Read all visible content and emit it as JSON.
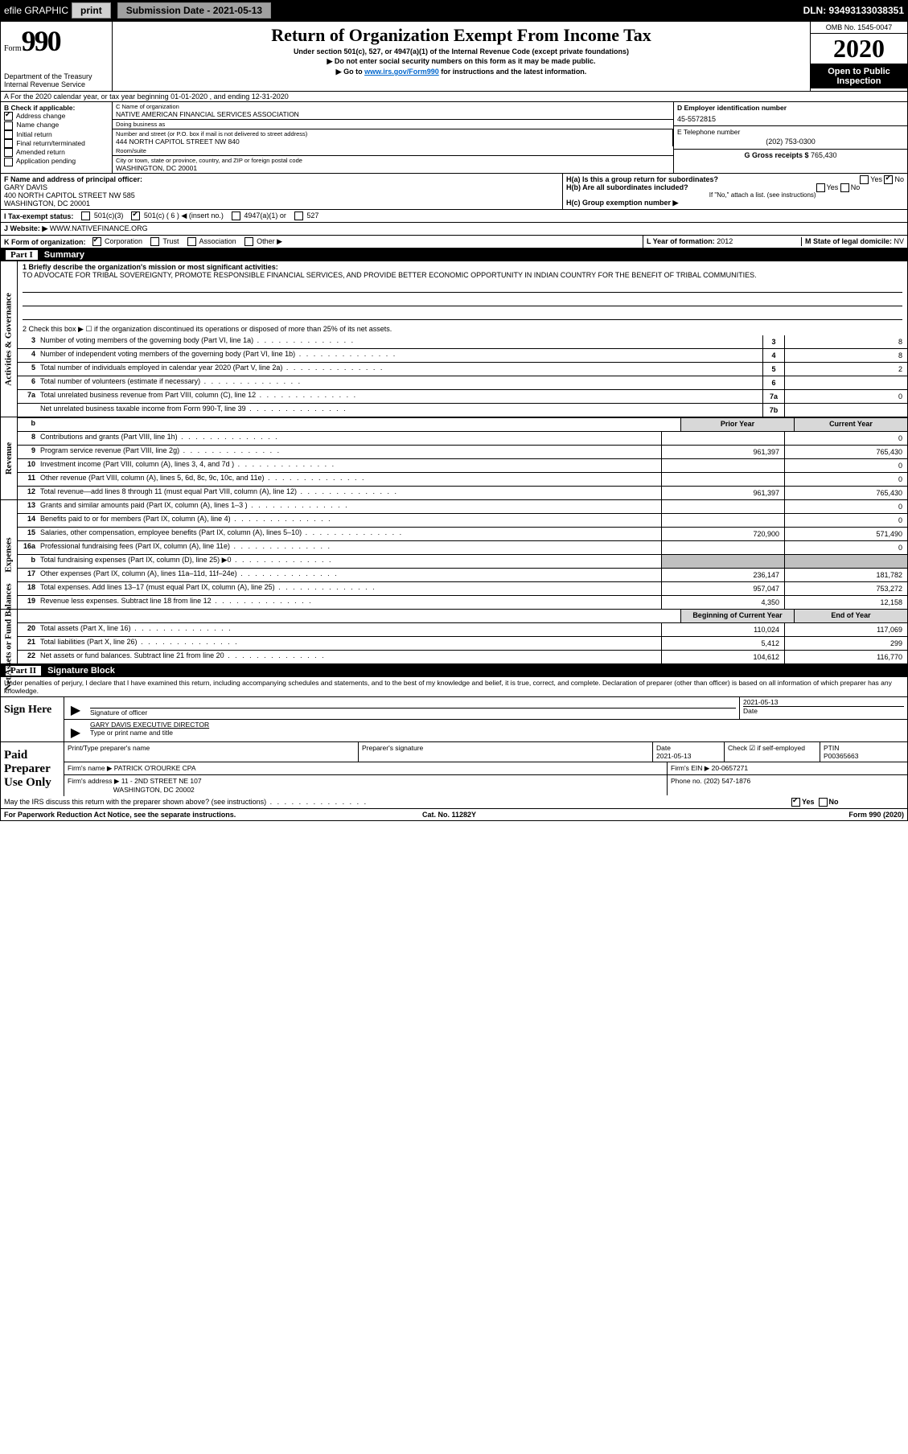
{
  "top_bar": {
    "efile": "efile GRAPHIC",
    "print": "print",
    "submission_label": "Submission Date - 2021-05-13",
    "dln": "DLN: 93493133038351"
  },
  "header": {
    "form_word": "Form",
    "form_number": "990",
    "dept": "Department of the Treasury",
    "irs": "Internal Revenue Service",
    "title": "Return of Organization Exempt From Income Tax",
    "sub1": "Under section 501(c), 527, or 4947(a)(1) of the Internal Revenue Code (except private foundations)",
    "sub2": "▶ Do not enter social security numbers on this form as it may be made public.",
    "sub3_pre": "▶ Go to ",
    "sub3_link": "www.irs.gov/Form990",
    "sub3_post": " for instructions and the latest information.",
    "omb": "OMB No. 1545-0047",
    "year": "2020",
    "open": "Open to Public Inspection"
  },
  "row_a": "A For the 2020 calendar year, or tax year beginning 01-01-2020   , and ending 12-31-2020",
  "col_b": {
    "title": "B Check if applicable:",
    "items": [
      "Address change",
      "Name change",
      "Initial return",
      "Final return/terminated",
      "Amended return",
      "Application pending"
    ],
    "checked_index": 0
  },
  "col_c": {
    "name_lbl": "C Name of organization",
    "name": "NATIVE AMERICAN FINANCIAL SERVICES ASSOCIATION",
    "dba_lbl": "Doing business as",
    "dba": "",
    "addr_lbl": "Number and street (or P.O. box if mail is not delivered to street address)",
    "room_lbl": "Room/suite",
    "addr": "444 NORTH CAPITOL STREET NW 840",
    "city_lbl": "City or town, state or province, country, and ZIP or foreign postal code",
    "city": "WASHINGTON, DC  20001"
  },
  "col_de": {
    "d_lbl": "D Employer identification number",
    "d_val": "45-5572815",
    "e_lbl": "E Telephone number",
    "e_val": "(202) 753-0300",
    "g_lbl": "G Gross receipts $ ",
    "g_val": "765,430"
  },
  "row_f": {
    "lbl": "F  Name and address of principal officer:",
    "name": "GARY DAVIS",
    "addr": "400 NORTH CAPITOL STREET NW 585\nWASHINGTON, DC  20001"
  },
  "row_h": {
    "ha": "H(a)  Is this a group return for subordinates?",
    "ha_yes": "Yes",
    "ha_no": "No",
    "hb": "H(b)  Are all subordinates included?",
    "hb_yes": "Yes",
    "hb_no": "No",
    "hb_note": "If \"No,\" attach a list. (see instructions)",
    "hc": "H(c)  Group exemption number ▶"
  },
  "row_i": {
    "lbl": "I  Tax-exempt status:",
    "o1": "501(c)(3)",
    "o2": "501(c) ( 6 ) ◀ (insert no.)",
    "o3": "4947(a)(1) or",
    "o4": "527"
  },
  "row_j": {
    "lbl": "J  Website: ▶",
    "val": "WWW.NATIVEFINANCE.ORG"
  },
  "row_k": {
    "lbl": "K Form of organization:",
    "opts": [
      "Corporation",
      "Trust",
      "Association",
      "Other ▶"
    ],
    "l_lbl": "L Year of formation: ",
    "l_val": "2012",
    "m_lbl": "M State of legal domicile: ",
    "m_val": "NV"
  },
  "part1": {
    "pn": "Part I",
    "title": "Summary"
  },
  "mission": {
    "q1": "1  Briefly describe the organization's mission or most significant activities:",
    "text": "TO ADVOCATE FOR TRIBAL SOVEREIGNTY, PROMOTE RESPONSIBLE FINANCIAL SERVICES, AND PROVIDE BETTER ECONOMIC OPPORTUNITY IN INDIAN COUNTRY FOR THE BENEFIT OF TRIBAL COMMUNITIES.",
    "q2": "2  Check this box ▶ ☐  if the organization discontinued its operations or disposed of more than 25% of its net assets."
  },
  "gov": {
    "vtab": "Activities & Governance",
    "rows": [
      {
        "n": "3",
        "d": "Number of voting members of the governing body (Part VI, line 1a)",
        "box": "3",
        "v": "8"
      },
      {
        "n": "4",
        "d": "Number of independent voting members of the governing body (Part VI, line 1b)",
        "box": "4",
        "v": "8"
      },
      {
        "n": "5",
        "d": "Total number of individuals employed in calendar year 2020 (Part V, line 2a)",
        "box": "5",
        "v": "2"
      },
      {
        "n": "6",
        "d": "Total number of volunteers (estimate if necessary)",
        "box": "6",
        "v": ""
      },
      {
        "n": "7a",
        "d": "Total unrelated business revenue from Part VIII, column (C), line 12",
        "box": "7a",
        "v": "0"
      },
      {
        "n": "",
        "d": "Net unrelated business taxable income from Form 990-T, line 39",
        "box": "7b",
        "v": ""
      }
    ]
  },
  "rev": {
    "vtab": "Revenue",
    "hdr_prior": "Prior Year",
    "hdr_curr": "Current Year",
    "rows": [
      {
        "n": "8",
        "d": "Contributions and grants (Part VIII, line 1h)",
        "p": "",
        "c": "0"
      },
      {
        "n": "9",
        "d": "Program service revenue (Part VIII, line 2g)",
        "p": "961,397",
        "c": "765,430"
      },
      {
        "n": "10",
        "d": "Investment income (Part VIII, column (A), lines 3, 4, and 7d )",
        "p": "",
        "c": "0"
      },
      {
        "n": "11",
        "d": "Other revenue (Part VIII, column (A), lines 5, 6d, 8c, 9c, 10c, and 11e)",
        "p": "",
        "c": "0"
      },
      {
        "n": "12",
        "d": "Total revenue—add lines 8 through 11 (must equal Part VIII, column (A), line 12)",
        "p": "961,397",
        "c": "765,430"
      }
    ]
  },
  "exp": {
    "vtab": "Expenses",
    "rows": [
      {
        "n": "13",
        "d": "Grants and similar amounts paid (Part IX, column (A), lines 1–3 )",
        "p": "",
        "c": "0"
      },
      {
        "n": "14",
        "d": "Benefits paid to or for members (Part IX, column (A), line 4)",
        "p": "",
        "c": "0"
      },
      {
        "n": "15",
        "d": "Salaries, other compensation, employee benefits (Part IX, column (A), lines 5–10)",
        "p": "720,900",
        "c": "571,490"
      },
      {
        "n": "16a",
        "d": "Professional fundraising fees (Part IX, column (A), line 11e)",
        "p": "",
        "c": "0"
      },
      {
        "n": "b",
        "d": "Total fundraising expenses (Part IX, column (D), line 25) ▶0",
        "p": "shade",
        "c": "shade"
      },
      {
        "n": "17",
        "d": "Other expenses (Part IX, column (A), lines 11a–11d, 11f–24e)",
        "p": "236,147",
        "c": "181,782"
      },
      {
        "n": "18",
        "d": "Total expenses. Add lines 13–17 (must equal Part IX, column (A), line 25)",
        "p": "957,047",
        "c": "753,272"
      },
      {
        "n": "19",
        "d": "Revenue less expenses. Subtract line 18 from line 12",
        "p": "4,350",
        "c": "12,158"
      }
    ]
  },
  "net": {
    "vtab": "Net Assets or Fund Balances",
    "hdr_beg": "Beginning of Current Year",
    "hdr_end": "End of Year",
    "rows": [
      {
        "n": "20",
        "d": "Total assets (Part X, line 16)",
        "p": "110,024",
        "c": "117,069"
      },
      {
        "n": "21",
        "d": "Total liabilities (Part X, line 26)",
        "p": "5,412",
        "c": "299"
      },
      {
        "n": "22",
        "d": "Net assets or fund balances. Subtract line 21 from line 20",
        "p": "104,612",
        "c": "116,770"
      }
    ]
  },
  "part2": {
    "pn": "Part II",
    "title": "Signature Block"
  },
  "penalty": "Under penalties of perjury, I declare that I have examined this return, including accompanying schedules and statements, and to the best of my knowledge and belief, it is true, correct, and complete. Declaration of preparer (other than officer) is based on all information of which preparer has any knowledge.",
  "sign": {
    "lbl": "Sign Here",
    "sig_lbl": "Signature of officer",
    "date_lbl": "Date",
    "date_val": "2021-05-13",
    "name": "GARY DAVIS EXECUTIVE DIRECTOR",
    "name_lbl": "Type or print name and title"
  },
  "prep": {
    "lbl": "Paid Preparer Use Only",
    "h1": "Print/Type preparer's name",
    "h2": "Preparer's signature",
    "h3": "Date",
    "h3v": "2021-05-13",
    "h4": "Check ☑ if self-employed",
    "h5": "PTIN",
    "h5v": "P00365663",
    "firm_lbl": "Firm's name    ▶",
    "firm": "PATRICK O'ROURKE CPA",
    "ein_lbl": "Firm's EIN ▶",
    "ein": "20-0657271",
    "addr_lbl": "Firm's address ▶",
    "addr1": "11 - 2ND STREET NE 107",
    "addr2": "WASHINGTON, DC  20002",
    "phone_lbl": "Phone no. ",
    "phone": "(202) 547-1876"
  },
  "discuss": {
    "q": "May the IRS discuss this return with the preparer shown above? (see instructions)",
    "yes": "Yes",
    "no": "No"
  },
  "footer": {
    "left": "For Paperwork Reduction Act Notice, see the separate instructions.",
    "mid": "Cat. No. 11282Y",
    "right": "Form 990 (2020)"
  }
}
